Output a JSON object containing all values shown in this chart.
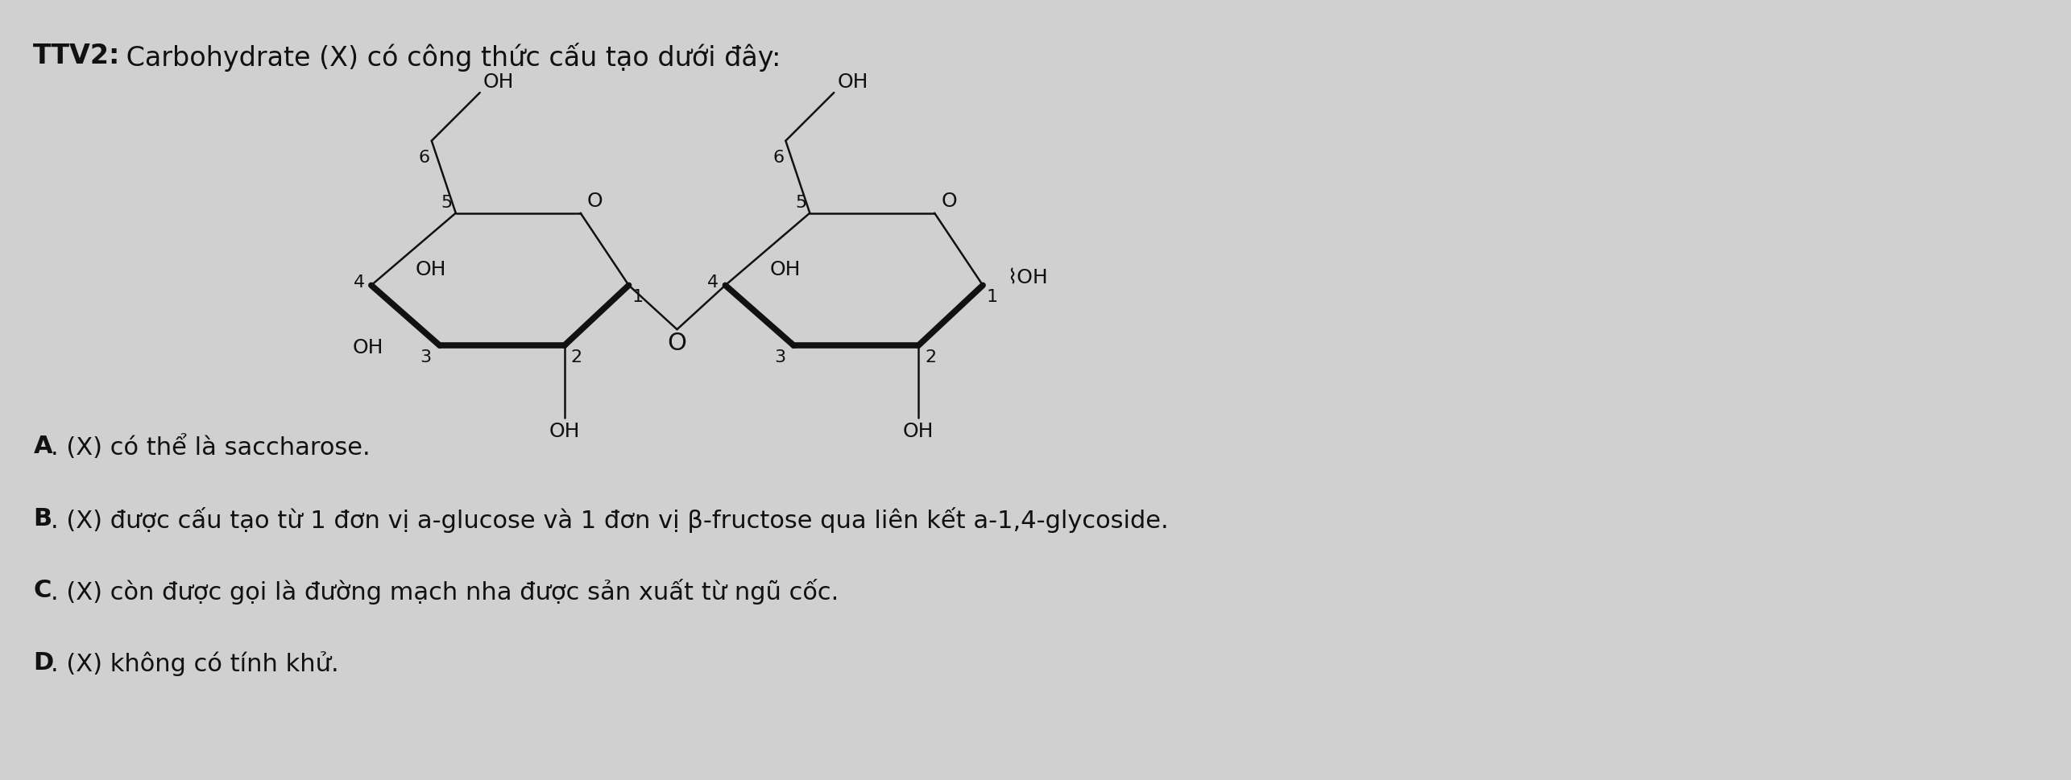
{
  "background_color": "#d0d0d0",
  "text_color": "#111111",
  "line_color": "#111111",
  "bold_lw": 5.5,
  "thin_lw": 1.8,
  "fs_title": 24,
  "fs_text": 22,
  "fs_chem_num": 16,
  "fs_chem_oh": 18,
  "fs_chem_O": 18,
  "title_bold": "TTV2:",
  "title_rest": " Carbohydrate (X) có công thức cấu tạo dưới đây:",
  "answer_A": "A. (X) có thể là saccharose.",
  "answer_B": "B. (X) được cấu tạo từ 1 đơn vị a-glucose và 1 đơn vị β-fructose qua liên kết a-1,4-glycoside.",
  "answer_C": "C. (X) còn được gọi là đường mạch nha được sản xuất từ ngũ cốc.",
  "answer_D": "D. (X) không có tính khử."
}
